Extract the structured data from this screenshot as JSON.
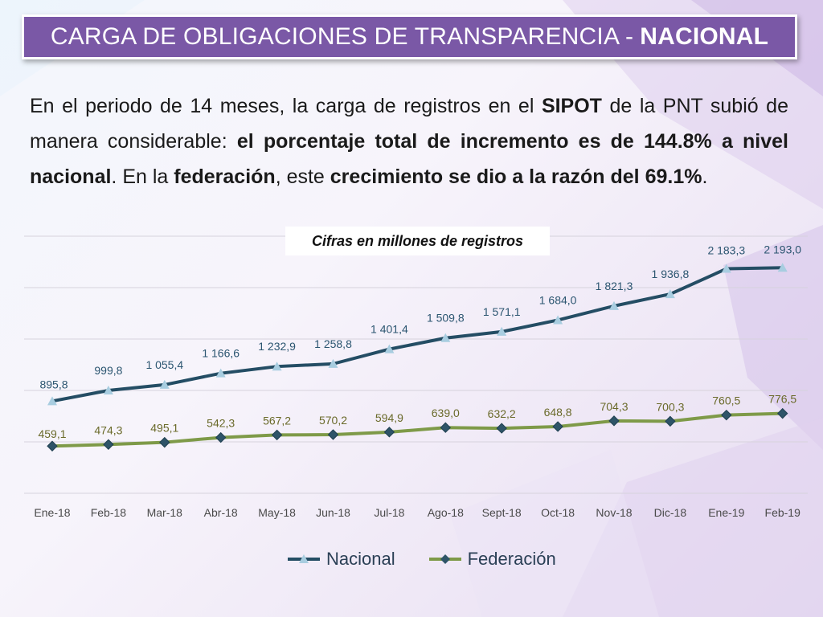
{
  "header": {
    "title_main": "CARGA DE OBLIGACIONES DE TRANSPARENCIA -",
    "title_bold": "NACIONAL"
  },
  "summary": {
    "p1": "En el periodo de 14 meses, la carga de registros en el ",
    "b1": "SIPOT",
    "p2": " de la PNT subió de manera considerable: ",
    "b2": "el porcentaje total de incremento es de 144.8% a nivel nacional",
    "p3": ". En la ",
    "b3": "federación",
    "p4": ", este ",
    "b4": "crecimiento se dio a la razón del 69.1%",
    "p5": "."
  },
  "colors": {
    "nacional_line": "#244d64",
    "nacional_marker": "#a8cde0",
    "federacion_line": "#7e9a48",
    "federacion_marker": "#2e5468",
    "label_nacional": "#2b5570",
    "label_federacion": "#6a6a2a"
  },
  "chart_data": {
    "type": "line",
    "subtitle": "Cifras en millones de registros",
    "categories": [
      "Ene-18",
      "Feb-18",
      "Mar-18",
      "Abr-18",
      "May-18",
      "Jun-18",
      "Jul-18",
      "Ago-18",
      "Sept-18",
      "Oct-18",
      "Nov-18",
      "Dic-18",
      "Ene-19",
      "Feb-19"
    ],
    "ylim": [
      0,
      2500
    ],
    "grid": true,
    "legend_position": "bottom",
    "series": [
      {
        "name": "Nacional",
        "marker": "triangle",
        "values": [
          895.8,
          999.8,
          1055.4,
          1166.6,
          1232.9,
          1258.8,
          1401.4,
          1509.8,
          1571.1,
          1684.0,
          1821.3,
          1936.8,
          2183.3,
          2193.0
        ],
        "labels": [
          "895,8",
          "999,8",
          "1 055,4",
          "1 166,6",
          "1 232,9",
          "1 258,8",
          "1 401,4",
          "1 509,8",
          "1 571,1",
          "1 684,0",
          "1 821,3",
          "1 936,8",
          "2 183,3",
          "2 193,0"
        ]
      },
      {
        "name": "Federación",
        "marker": "diamond",
        "values": [
          459.1,
          474.3,
          495.1,
          542.3,
          567.2,
          570.2,
          594.9,
          639.0,
          632.2,
          648.8,
          704.3,
          700.3,
          760.5,
          776.5
        ],
        "labels": [
          "459,1",
          "474,3",
          "495,1",
          "542,3",
          "567,2",
          "570,2",
          "594,9",
          "639,0",
          "632,2",
          "648,8",
          "704,3",
          "700,3",
          "760,5",
          "776,5"
        ]
      }
    ]
  }
}
